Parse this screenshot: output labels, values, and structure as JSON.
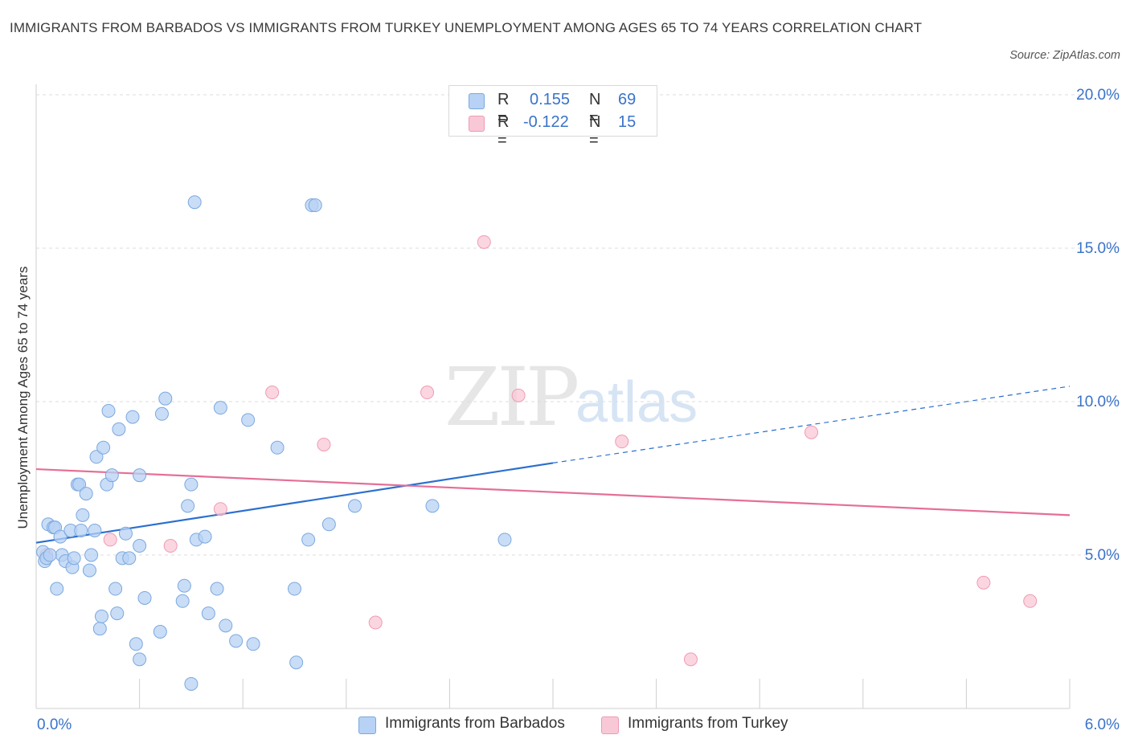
{
  "title": "IMMIGRANTS FROM BARBADOS VS IMMIGRANTS FROM TURKEY UNEMPLOYMENT AMONG AGES 65 TO 74 YEARS CORRELATION CHART",
  "source": "Source: ZipAtlas.com",
  "watermark": {
    "zip": "ZIP",
    "atlas": "atlas"
  },
  "colors": {
    "barbados_fill": "#b7d2f4",
    "barbados_stroke": "#7ba8de",
    "barbados_line": "#2b6fcf",
    "turkey_fill": "#f9c8d6",
    "turkey_stroke": "#ee9bb3",
    "turkey_line": "#e56f96",
    "axis_label": "#3a73c9",
    "grid": "#dcdcdc"
  },
  "legend": {
    "barbados": {
      "r_label": "R =",
      "r_value": "0.155",
      "n_label": "N =",
      "n_value": "69"
    },
    "turkey": {
      "r_label": "R =",
      "r_value": "-0.122",
      "n_label": "N =",
      "n_value": "15"
    }
  },
  "bottom_legend": {
    "barbados": "Immigrants from Barbados",
    "turkey": "Immigrants from Turkey"
  },
  "chart_data": {
    "type": "scatter",
    "title": "IMMIGRANTS FROM BARBADOS VS IMMIGRANTS FROM TURKEY UNEMPLOYMENT AMONG AGES 65 TO 74 YEARS CORRELATION CHART",
    "xlabel": "",
    "ylabel": "Unemployment Among Ages 65 to 74 years",
    "xlim": [
      0,
      6
    ],
    "ylim": [
      0,
      20
    ],
    "x_tick_labels": {
      "min": "0.0%",
      "max": "6.0%"
    },
    "y_ticks": [
      5,
      10,
      15,
      20
    ],
    "y_tick_labels": [
      "5.0%",
      "10.0%",
      "15.0%",
      "20.0%"
    ],
    "grid": true,
    "series": [
      {
        "name": "Immigrants from Barbados",
        "r": 0.155,
        "n": 69,
        "trend": {
          "x0": 0.0,
          "y0": 5.4,
          "x1": 3.0,
          "y1": 8.0,
          "x_dash_end": 6.0,
          "y_dash_end": 10.5
        },
        "points": [
          [
            0.04,
            5.1
          ],
          [
            0.05,
            4.8
          ],
          [
            0.06,
            4.9
          ],
          [
            0.07,
            6.0
          ],
          [
            0.1,
            5.9
          ],
          [
            0.11,
            5.9
          ],
          [
            0.12,
            3.9
          ],
          [
            0.14,
            5.6
          ],
          [
            0.15,
            5.0
          ],
          [
            0.17,
            4.8
          ],
          [
            0.2,
            5.8
          ],
          [
            0.21,
            4.6
          ],
          [
            0.22,
            4.9
          ],
          [
            0.24,
            7.3
          ],
          [
            0.25,
            7.3
          ],
          [
            0.26,
            5.8
          ],
          [
            0.27,
            6.3
          ],
          [
            0.29,
            7.0
          ],
          [
            0.31,
            4.5
          ],
          [
            0.32,
            5.0
          ],
          [
            0.34,
            5.8
          ],
          [
            0.35,
            8.2
          ],
          [
            0.37,
            2.6
          ],
          [
            0.38,
            3.0
          ],
          [
            0.39,
            8.5
          ],
          [
            0.41,
            7.3
          ],
          [
            0.42,
            9.7
          ],
          [
            0.44,
            7.6
          ],
          [
            0.46,
            3.9
          ],
          [
            0.47,
            3.1
          ],
          [
            0.48,
            9.1
          ],
          [
            0.5,
            4.9
          ],
          [
            0.52,
            5.7
          ],
          [
            0.54,
            4.9
          ],
          [
            0.56,
            9.5
          ],
          [
            0.58,
            2.1
          ],
          [
            0.6,
            1.6
          ],
          [
            0.6,
            7.6
          ],
          [
            0.63,
            3.6
          ],
          [
            0.72,
            2.5
          ],
          [
            0.73,
            9.6
          ],
          [
            0.75,
            10.1
          ],
          [
            0.85,
            3.5
          ],
          [
            0.86,
            4.0
          ],
          [
            0.88,
            6.6
          ],
          [
            0.9,
            7.3
          ],
          [
            0.9,
            0.8
          ],
          [
            0.93,
            5.5
          ],
          [
            0.98,
            5.6
          ],
          [
            1.0,
            3.1
          ],
          [
            1.05,
            3.9
          ],
          [
            1.07,
            9.8
          ],
          [
            1.1,
            2.7
          ],
          [
            1.16,
            2.2
          ],
          [
            1.23,
            9.4
          ],
          [
            1.26,
            2.1
          ],
          [
            1.4,
            8.5
          ],
          [
            1.5,
            3.9
          ],
          [
            1.51,
            1.5
          ],
          [
            1.58,
            5.5
          ],
          [
            1.6,
            16.4
          ],
          [
            1.62,
            16.4
          ],
          [
            1.7,
            6.0
          ],
          [
            1.85,
            6.6
          ],
          [
            2.3,
            6.6
          ],
          [
            2.72,
            5.5
          ],
          [
            0.92,
            16.5
          ],
          [
            0.08,
            5.0
          ],
          [
            0.6,
            5.3
          ]
        ]
      },
      {
        "name": "Immigrants from Turkey",
        "r": -0.122,
        "n": 15,
        "trend": {
          "x0": 0.0,
          "y0": 7.8,
          "x1": 6.0,
          "y1": 6.3
        },
        "points": [
          [
            0.06,
            5.0
          ],
          [
            0.43,
            5.5
          ],
          [
            0.78,
            5.3
          ],
          [
            1.07,
            6.5
          ],
          [
            1.37,
            10.3
          ],
          [
            1.67,
            8.6
          ],
          [
            1.97,
            2.8
          ],
          [
            2.27,
            10.3
          ],
          [
            2.6,
            15.2
          ],
          [
            2.8,
            10.2
          ],
          [
            3.4,
            8.7
          ],
          [
            3.8,
            1.6
          ],
          [
            4.5,
            9.0
          ],
          [
            5.5,
            4.1
          ],
          [
            5.77,
            3.5
          ]
        ]
      }
    ]
  }
}
